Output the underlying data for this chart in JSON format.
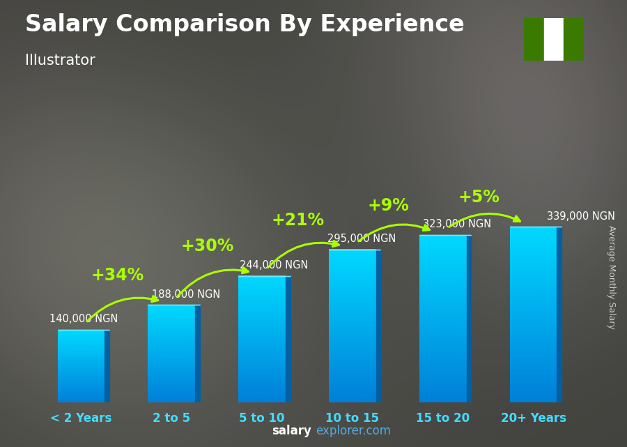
{
  "title": "Salary Comparison By Experience",
  "subtitle": "Illustrator",
  "ylabel": "Average Monthly Salary",
  "footer_bold": "salary",
  "footer_normal": "explorer.com",
  "categories": [
    "< 2 Years",
    "2 to 5",
    "5 to 10",
    "10 to 15",
    "15 to 20",
    "20+ Years"
  ],
  "values": [
    140000,
    188000,
    244000,
    295000,
    323000,
    339000
  ],
  "labels": [
    "140,000 NGN",
    "188,000 NGN",
    "244,000 NGN",
    "295,000 NGN",
    "323,000 NGN",
    "339,000 NGN"
  ],
  "pct_changes": [
    "+34%",
    "+30%",
    "+21%",
    "+9%",
    "+5%"
  ],
  "bar_color_top": "#00cfff",
  "bar_color_bottom": "#0077cc",
  "bar_color_side": "#005a99",
  "bar_color_topface": "#55e0ff",
  "background_color": "#4a4a4a",
  "title_color": "#ffffff",
  "subtitle_color": "#ffffff",
  "label_color": "#ffffff",
  "pct_color": "#aaff00",
  "arrow_color": "#aaff00",
  "footer_color": "#88ccee",
  "footer_bold_color": "#ffffff",
  "ylabel_color": "#cccccc",
  "nigeria_green": "#3a7a00",
  "nigeria_white": "#ffffff",
  "title_fontsize": 24,
  "subtitle_fontsize": 15,
  "label_fontsize": 10.5,
  "pct_fontsize": 17,
  "footer_fontsize": 12,
  "ylabel_fontsize": 9,
  "xticklabel_fontsize": 12
}
